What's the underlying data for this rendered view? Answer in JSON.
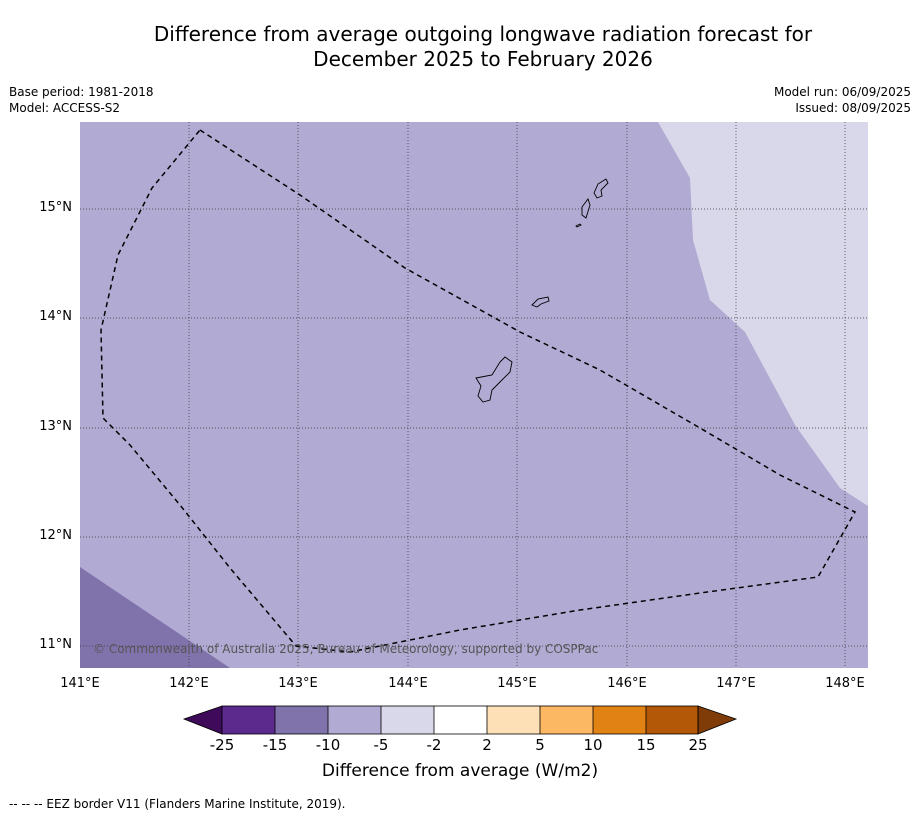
{
  "title_line1": "Difference from average outgoing longwave radiation forecast for",
  "title_line2": "December 2025 to February 2026",
  "base_period": "Base period: 1981-2018",
  "model": "Model: ACCESS-S2",
  "model_run": "Model run: 06/09/2025",
  "issued": "Issued: 08/09/2025",
  "lat_labels": [
    "15°N",
    "14°N",
    "13°N",
    "12°N",
    "11°N"
  ],
  "lon_labels": [
    "141°E",
    "142°E",
    "143°E",
    "144°E",
    "145°E",
    "146°E",
    "147°E",
    "148°E"
  ],
  "copyright": "© Commonwealth of Australia 2025, Bureau of Meteorology, supported by COSPPac",
  "colorbar": {
    "labels": [
      "-25",
      "-15",
      "-10",
      "-5",
      "-2",
      "2",
      "5",
      "10",
      "15",
      "25"
    ],
    "colors": [
      "#3f0a5a",
      "#5b2a8c",
      "#8073ac",
      "#b1aad2",
      "#d8d8ea",
      "#ffffff",
      "#fee0b6",
      "#fdb863",
      "#e08214",
      "#b35806",
      "#7f3b08"
    ],
    "title": "Difference from average (W/m2)"
  },
  "map_colors": {
    "main": "#b1aad2",
    "upper_right": "#d8d8ea",
    "lower_left": "#8073ac"
  },
  "footnote": "--  --  -- EEZ border V11 (Flanders Marine Institute, 2019)."
}
